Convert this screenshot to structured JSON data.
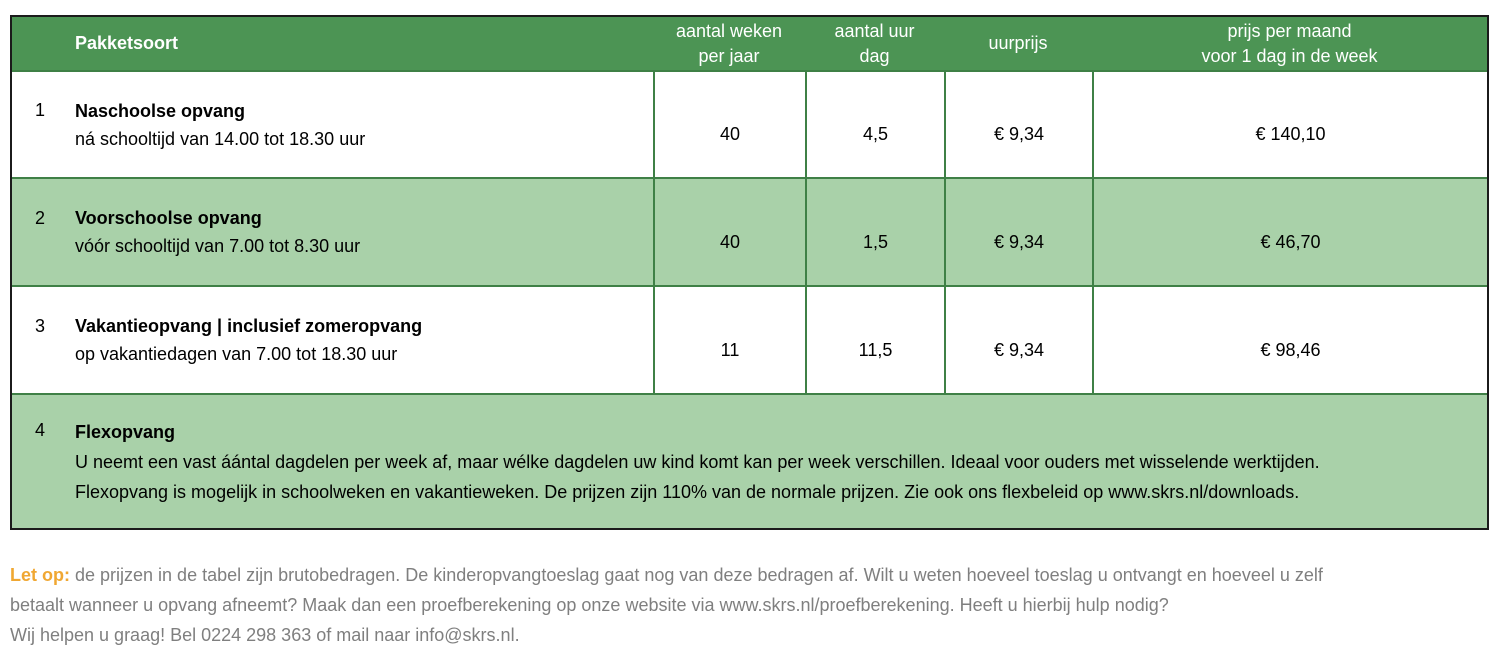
{
  "table": {
    "header": {
      "package": "Pakketsoort",
      "weeks_line1": "aantal weken",
      "weeks_line2": "per jaar",
      "hours_line1": "aantal uur",
      "hours_line2": "dag",
      "hourly_rate": "uurprijs",
      "monthly_line1": "prijs per maand",
      "monthly_line2": "voor 1 dag in de week"
    },
    "rows": [
      {
        "num": "1",
        "title": "Naschoolse opvang",
        "subtitle": "ná schooltijd van 14.00 tot 18.30 uur",
        "weeks": "40",
        "hours": "4,5",
        "hourly_rate": "€ 9,34",
        "monthly_price": "€ 140,10"
      },
      {
        "num": "2",
        "title": "Voorschoolse opvang",
        "subtitle": "vóór schooltijd van 7.00 tot 8.30 uur",
        "weeks": "40",
        "hours": "1,5",
        "hourly_rate": "€ 9,34",
        "monthly_price": "€ 46,70"
      },
      {
        "num": "3",
        "title": "Vakantieopvang | inclusief zomeropvang",
        "subtitle": "op vakantiedagen van 7.00 tot 18.30 uur",
        "weeks": "11",
        "hours": "11,5",
        "hourly_rate": "€ 9,34",
        "monthly_price": "€ 98,46"
      }
    ],
    "flex_row": {
      "num": "4",
      "title": "Flexopvang",
      "line1": "U neemt een vast áántal dagdelen per week af, maar wélke dagdelen uw kind komt kan per week verschillen. Ideaal voor ouders met wisselende werktijden.",
      "line2": "Flexopvang is mogelijk in schoolweken en vakantieweken. De prijzen zijn 110% van de normale prijzen. Zie ook ons flexbeleid op www.skrs.nl/downloads."
    }
  },
  "footer": {
    "label": "Let op:",
    "line1": " de prijzen in de tabel zijn brutobedragen. De kinderopvangtoeslag gaat nog van deze bedragen af. Wilt u weten hoeveel toeslag u ontvangt en hoeveel u zelf",
    "line2": "betaalt wanneer u opvang afneemt? Maak dan een proefberekening op onze website via www.skrs.nl/proefberekening. Heeft u hierbij hulp nodig?",
    "line3": "Wij helpen u graag! Bel 0224 298 363 of mail naar info@skrs.nl."
  },
  "colors": {
    "header_green": "#4C9454",
    "row_green": "#A9D1A9",
    "border_green": "#3F8046",
    "outer_border": "#1B1B1B",
    "accent_orange": "#F0A732",
    "footer_gray": "#7F7F7F"
  }
}
